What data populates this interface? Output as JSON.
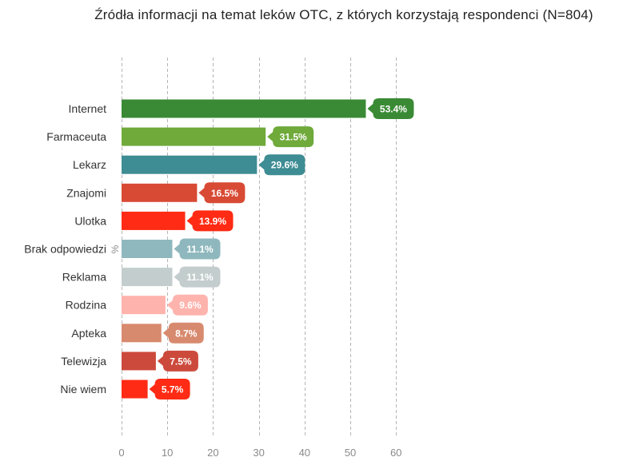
{
  "chart_data": {
    "type": "bar",
    "orientation": "horizontal",
    "title": "Źródła informacji na temat leków OTC, z których korzystają respondenci (N=804)",
    "unit_label": "%",
    "categories": [
      "Internet",
      "Farmaceuta",
      "Lekarz",
      "Znajomi",
      "Ulotka",
      "Brak odpowiedzi",
      "Reklama",
      "Rodzina",
      "Apteka",
      "Telewizja",
      "Nie wiem"
    ],
    "values": [
      53.4,
      31.5,
      29.6,
      16.5,
      13.9,
      11.1,
      11.1,
      9.6,
      8.7,
      7.5,
      5.7
    ],
    "data_labels": [
      "53.4%",
      "31.5%",
      "29.6%",
      "16.5%",
      "13.9%",
      "11.1%",
      "11.1%",
      "9.6%",
      "8.7%",
      "7.5%",
      "5.7%"
    ],
    "colors": [
      "#3a8a35",
      "#6faa3b",
      "#3e8c94",
      "#d84a34",
      "#ff2b14",
      "#8fb8be",
      "#c3cdcd",
      "#ffb3ad",
      "#d88a6e",
      "#cc4a3c",
      "#ff2b14"
    ],
    "xlim": [
      0,
      60
    ],
    "xticks": [
      0,
      10,
      20,
      30,
      40,
      50,
      60
    ],
    "grid": true,
    "legend": "none"
  }
}
